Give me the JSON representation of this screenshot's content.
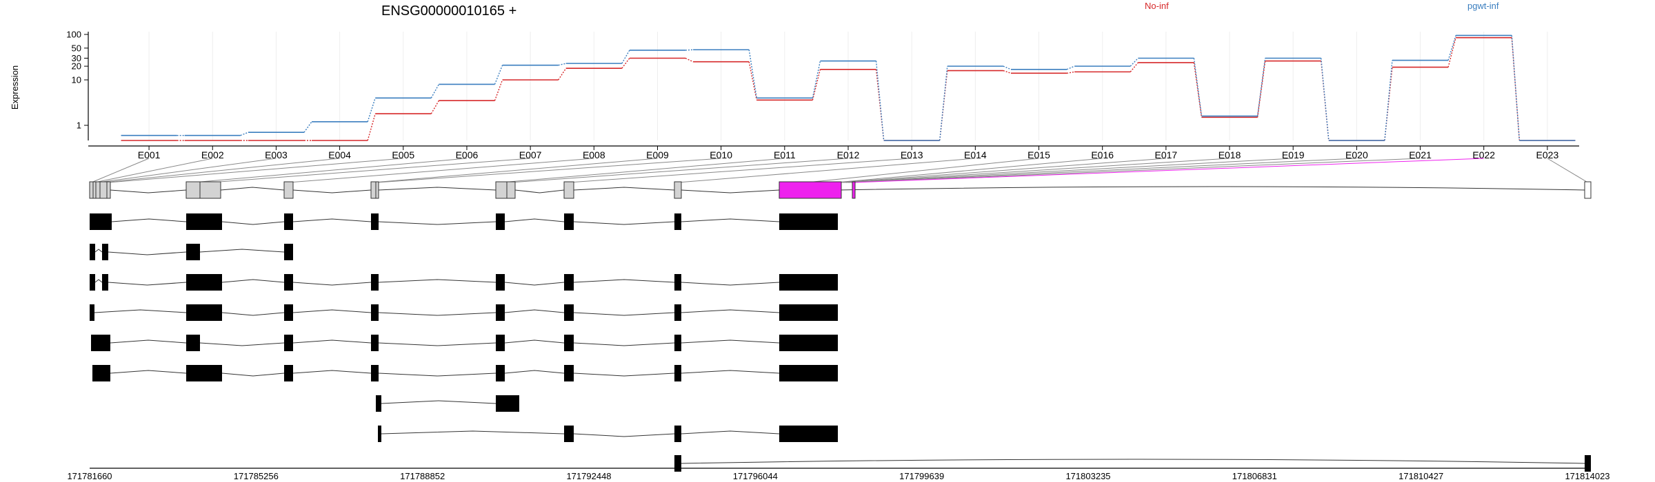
{
  "title": "ENSG00000010165 +",
  "colors": {
    "no_inf": "#d62728",
    "pgwt_inf": "#3a7ebf",
    "highlight": "#ee22ee",
    "exon_grey": "#d3d3d3"
  },
  "chart_data": {
    "type": "line",
    "title": "ENSG00000010165 +",
    "ylabel": "Expression",
    "yscale": "log",
    "ylim": [
      0.4,
      100
    ],
    "yticks": [
      1,
      10,
      20,
      30,
      50,
      100
    ],
    "categories": [
      "E001",
      "E002",
      "E003",
      "E004",
      "E005",
      "E006",
      "E007",
      "E008",
      "E009",
      "E010",
      "E011",
      "E012",
      "E013",
      "E014",
      "E015",
      "E016",
      "E017",
      "E018",
      "E019",
      "E020",
      "E021",
      "E022",
      "E023"
    ],
    "series": [
      {
        "name": "No-inf",
        "color": "#d62728",
        "values": [
          0.4,
          0.4,
          0.4,
          0.4,
          1.8,
          3.5,
          10,
          18,
          30,
          25,
          3.6,
          17,
          0.4,
          16,
          14,
          15,
          24,
          1.5,
          26,
          0.4,
          19,
          85,
          0.4
        ]
      },
      {
        "name": "pgwt-inf",
        "color": "#3a7ebf",
        "values": [
          0.6,
          0.6,
          0.7,
          1.2,
          4,
          8,
          21,
          23,
          45,
          46,
          4,
          26,
          0.4,
          20,
          17,
          20,
          30,
          1.6,
          30,
          0.4,
          27,
          95,
          0.4
        ]
      }
    ],
    "legend_placement": "top-right"
  },
  "genome_axis": {
    "ticks": [
      "171781660",
      "171785256",
      "171788852",
      "171792448",
      "171796044",
      "171799639",
      "171803235",
      "171806831",
      "171810427",
      "171814023"
    ]
  }
}
